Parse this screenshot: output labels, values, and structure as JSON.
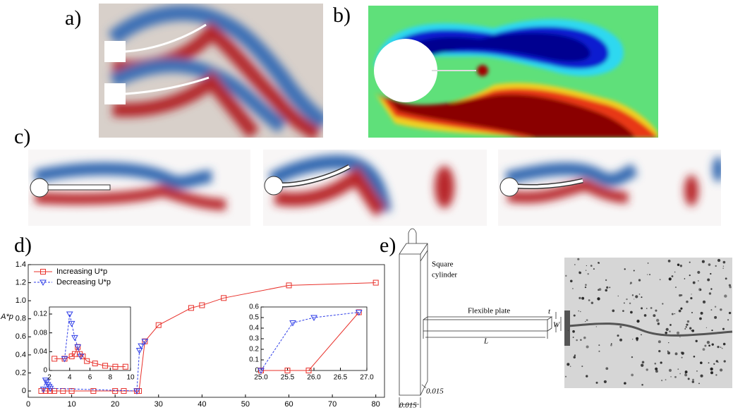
{
  "panels": {
    "a": {
      "label": "a)"
    },
    "b": {
      "label": "b)"
    },
    "c": {
      "label": "c)"
    },
    "d": {
      "label": "d)"
    },
    "e": {
      "label": "e)",
      "cylinder_label": [
        "Square",
        "cylinder"
      ],
      "plate_label": "Flexible plate",
      "thickness": "t",
      "width": "W",
      "length": "L",
      "depth": "0.015",
      "side": "0.015"
    }
  },
  "chart_data": [
    {
      "type": "line",
      "y_label": "A*p",
      "xlim": [
        0,
        82
      ],
      "ylim": [
        -0.07,
        1.4
      ],
      "xticks": [
        0,
        10,
        20,
        30,
        40,
        50,
        60,
        70,
        80
      ],
      "yticks": [
        0,
        0.2,
        0.4,
        0.6,
        0.8,
        {
          "value": 1,
          "label": "1.0"
        },
        1.2,
        1.4
      ],
      "series": [
        {
          "name": "Increasing U*p",
          "color": "#e8302a",
          "marker": "square",
          "dash": false,
          "x": [
            3,
            4,
            5,
            6,
            8,
            10,
            15,
            20,
            22,
            25,
            25.5,
            26.85,
            30,
            37.5,
            40,
            45,
            60,
            80
          ],
          "values": [
            0,
            0,
            0,
            0,
            0,
            0,
            0,
            0,
            0,
            0,
            0,
            0.55,
            0.73,
            0.92,
            0.95,
            1.03,
            1.17,
            1.2
          ]
        },
        {
          "name": "Decreasing U*p",
          "color": "#2f3ee8",
          "marker": "triangle",
          "dash": true,
          "x": [
            3.5,
            4,
            4.2,
            4.5,
            4.8,
            5.1,
            25,
            25.6,
            26,
            26.85
          ],
          "values": [
            0.02,
            0.12,
            0.1,
            0.07,
            0.05,
            0.03,
            0,
            0.45,
            0.5,
            0.55
          ]
        }
      ]
    },
    {
      "type": "line",
      "xlim": [
        2,
        10
      ],
      "ylim": [
        0,
        0.135
      ],
      "xticks": [
        2,
        4,
        6,
        8,
        10
      ],
      "yticks": [
        0,
        0.04,
        0.08,
        0.12
      ],
      "series": [
        {
          "color": "#e8302a",
          "marker": "square",
          "dash": false,
          "x": [
            2.5,
            3.5,
            4.2,
            4.5,
            4.8,
            5,
            5.3,
            5.7,
            6.5,
            7.5,
            8.5,
            9.5
          ],
          "values": [
            0.025,
            0.025,
            0.03,
            0.035,
            0.05,
            0.035,
            0.03,
            0.02,
            0.015,
            0.01,
            0.008,
            0.008
          ]
        },
        {
          "color": "#2f3ee8",
          "marker": "triangle",
          "dash": true,
          "x": [
            3.5,
            4,
            4.2,
            4.5,
            4.8,
            5.1
          ],
          "values": [
            0.025,
            0.12,
            0.1,
            0.07,
            0.05,
            0.03
          ]
        }
      ]
    },
    {
      "type": "line",
      "xlim": [
        25,
        27
      ],
      "ylim": [
        0,
        0.6
      ],
      "xticks": [
        {
          "value": 25,
          "label": "25.0"
        },
        25.5,
        {
          "value": 26,
          "label": "26.0"
        },
        26.5,
        {
          "value": 27,
          "label": "27.0"
        }
      ],
      "yticks": [
        0,
        0.1,
        0.2,
        0.3,
        0.4,
        0.5,
        0.6
      ],
      "series": [
        {
          "color": "#e8302a",
          "marker": "square",
          "dash": false,
          "x": [
            25,
            25.5,
            25.9,
            26.85
          ],
          "values": [
            0,
            0,
            0,
            0.55
          ]
        },
        {
          "color": "#2f3ee8",
          "marker": "triangle",
          "dash": true,
          "x": [
            25,
            25.6,
            26,
            26.85
          ],
          "values": [
            0,
            0.45,
            0.5,
            0.55
          ]
        }
      ]
    }
  ]
}
